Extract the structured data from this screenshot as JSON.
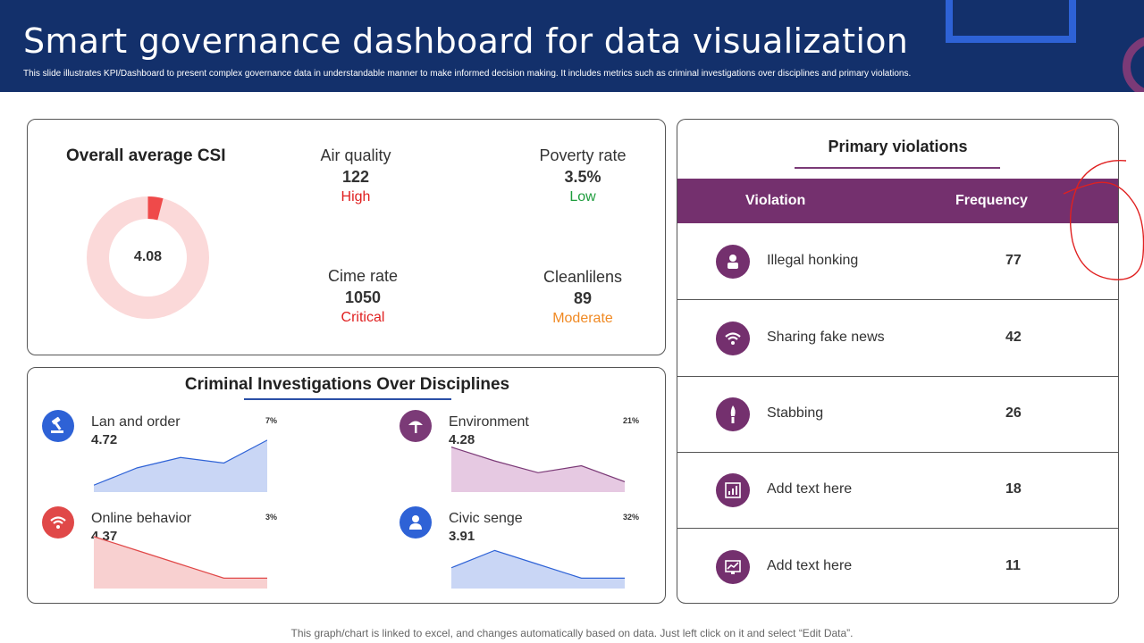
{
  "header": {
    "title": "Smart governance dashboard for data visualization",
    "subtitle": "This slide illustrates KPI/Dashboard to present complex governance data in understandable manner to make informed decision making. It includes metrics such as criminal investigations over disciplines and primary violations."
  },
  "csi": {
    "title": "Overall average CSI",
    "value": "4.08",
    "fill_fraction": 0.04
  },
  "kpis": [
    {
      "label": "Air quality",
      "value": "122",
      "status": "High",
      "status_color": "#e02020"
    },
    {
      "label": "Poverty rate",
      "value": "3.5%",
      "status": "Low",
      "status_color": "#1f9d3e"
    },
    {
      "label": "Cime rate",
      "value": "1050",
      "status": "Critical",
      "status_color": "#e02020"
    },
    {
      "label": "Cleanlilens",
      "value": "89",
      "status": "Moderate",
      "status_color": "#f08a24"
    }
  ],
  "criminal": {
    "title": "Criminal Investigations Over Disciplines",
    "items": [
      {
        "label": "Lan and order",
        "value": "4.72",
        "percent": "7%",
        "icon": "gavel-icon",
        "icon_color": "#2e62d6",
        "trend": [
          1,
          3.5,
          5,
          4.2,
          7.5
        ],
        "fill": "#c9d6f5",
        "stroke": "#2e62d6"
      },
      {
        "label": "Environment",
        "value": "4.28",
        "percent": "21%",
        "icon": "tree-icon",
        "icon_color": "#7b3a77",
        "trend": [
          6.5,
          4.5,
          2.8,
          3.8,
          1.5
        ],
        "fill": "#e6c9e2",
        "stroke": "#7b3a77"
      },
      {
        "label": "Online behavior",
        "value": "4.37",
        "percent": "3%",
        "icon": "wifi-icon",
        "icon_color": "#e04848",
        "trend": [
          7.5,
          5.5,
          3.5,
          1.5,
          1.5
        ],
        "fill": "#f8d0d0",
        "stroke": "#e04848"
      },
      {
        "label": "Civic senge",
        "value": "3.91",
        "percent": "32%",
        "icon": "user-icon",
        "icon_color": "#2e62d6",
        "trend": [
          3,
          5.5,
          3.5,
          1.5,
          1.5
        ],
        "fill": "#c9d6f5",
        "stroke": "#2e62d6"
      }
    ]
  },
  "violations": {
    "title": "Primary violations",
    "col_violation": "Violation",
    "col_frequency": "Frequency",
    "rows": [
      {
        "name": "Illegal honking",
        "frequency": "77",
        "icon": "person-icon"
      },
      {
        "name": "Sharing fake news",
        "frequency": "42",
        "icon": "wifi-icon"
      },
      {
        "name": "Stabbing",
        "frequency": "26",
        "icon": "knife-icon"
      },
      {
        "name": "Add text here",
        "frequency": "18",
        "icon": "report-icon"
      },
      {
        "name": "Add text here",
        "frequency": "11",
        "icon": "chart-board-icon"
      }
    ]
  },
  "footer": "This graph/chart is linked to excel, and changes automatically based on data. Just left click on it and select “Edit Data”."
}
